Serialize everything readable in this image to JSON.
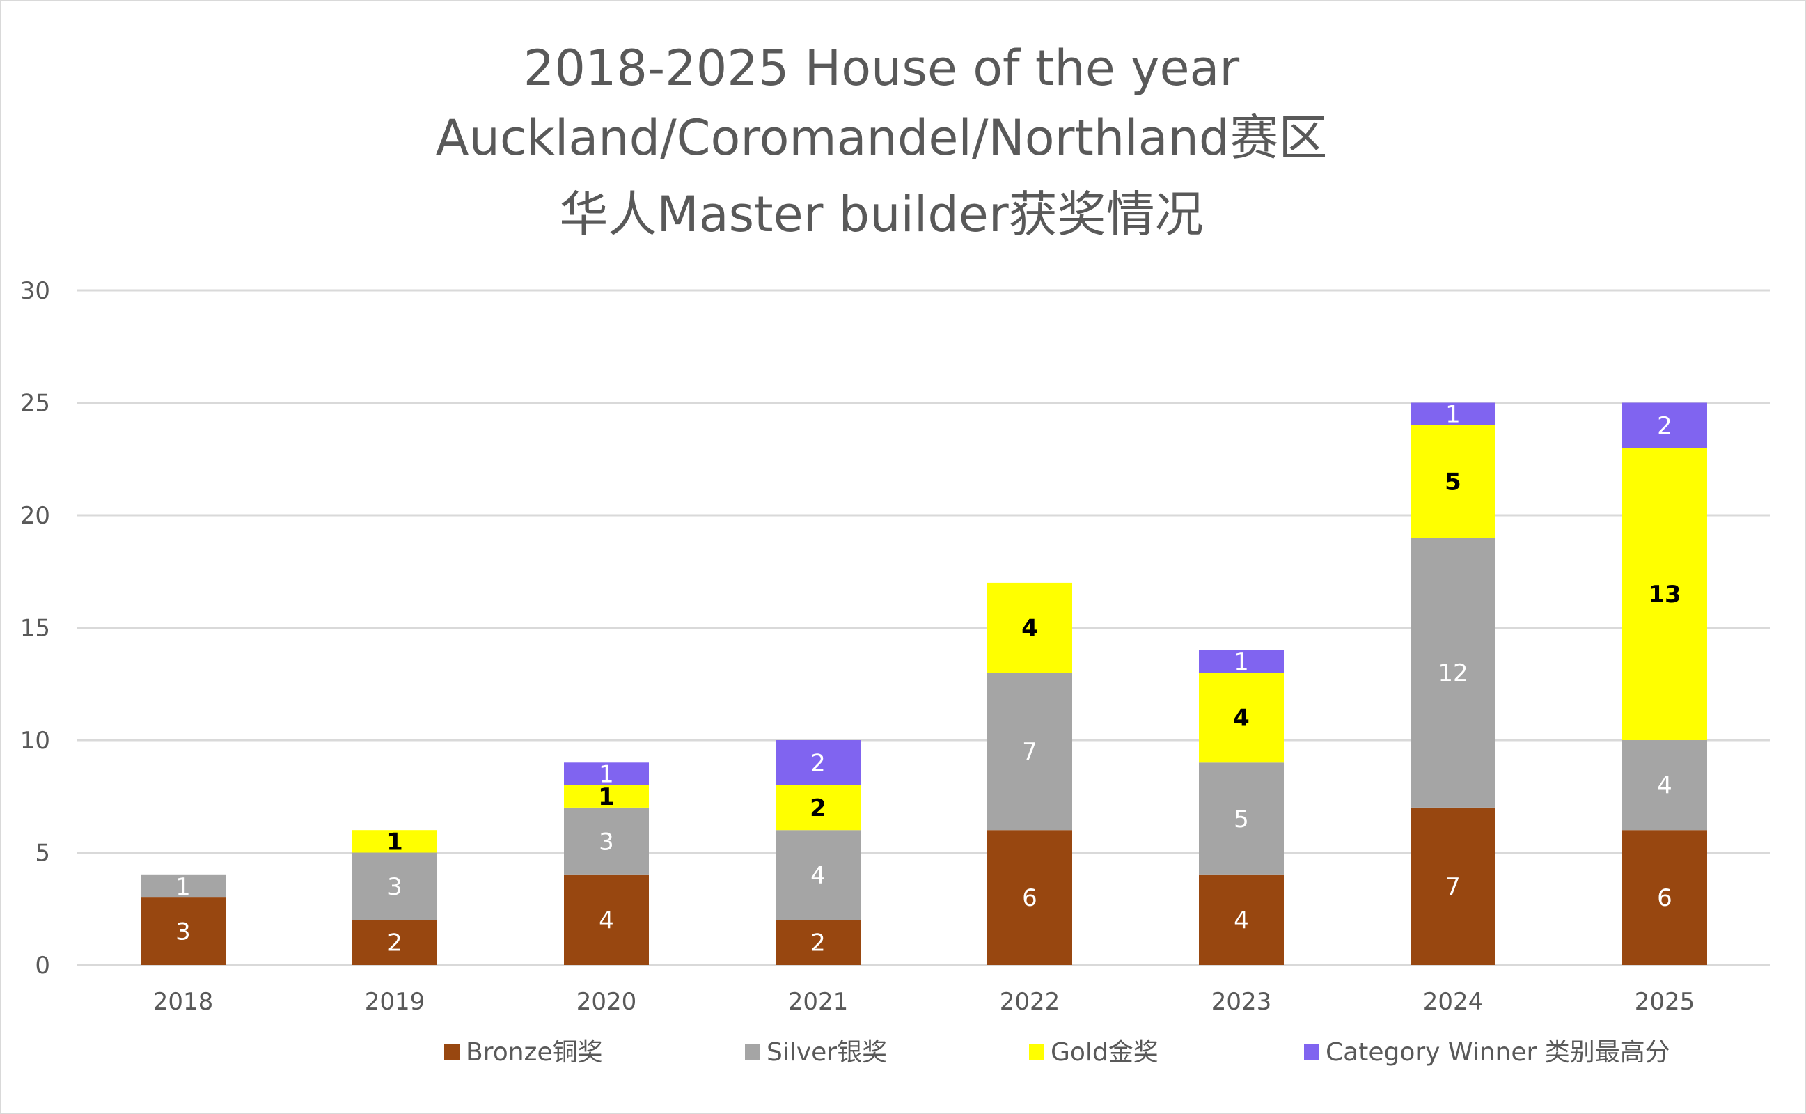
{
  "chart_data": {
    "type": "bar",
    "stacked": true,
    "title": [
      "2018-2025 House of the year",
      "Auckland/Coromandel/Northland赛区",
      "华人Master builder获奖情况"
    ],
    "xlabel": "",
    "ylabel": "",
    "categories": [
      "2018",
      "2019",
      "2020",
      "2021",
      "2022",
      "2023",
      "2024",
      "2025"
    ],
    "ylim": [
      0,
      30
    ],
    "yticks": [
      0,
      5,
      10,
      15,
      20,
      25,
      30
    ],
    "grid": true,
    "legend_position": "bottom",
    "series": [
      {
        "name": "Bronze铜奖",
        "color": "#984710",
        "label_color": "#ffffff",
        "bold": false,
        "values": [
          3,
          2,
          4,
          2,
          6,
          4,
          7,
          6
        ]
      },
      {
        "name": "Silver银奖",
        "color": "#a5a5a5",
        "label_color": "#ffffff",
        "bold": false,
        "values": [
          1,
          3,
          3,
          4,
          7,
          5,
          12,
          4
        ]
      },
      {
        "name": "Gold金奖",
        "color": "#ffff00",
        "label_color": "#000000",
        "bold": true,
        "values": [
          0,
          1,
          1,
          2,
          4,
          4,
          5,
          13
        ]
      },
      {
        "name": "Category Winner 类别最高分",
        "color": "#8064f0",
        "label_color": "#ffffff",
        "bold": false,
        "values": [
          0,
          0,
          1,
          2,
          0,
          1,
          1,
          2
        ]
      }
    ]
  }
}
